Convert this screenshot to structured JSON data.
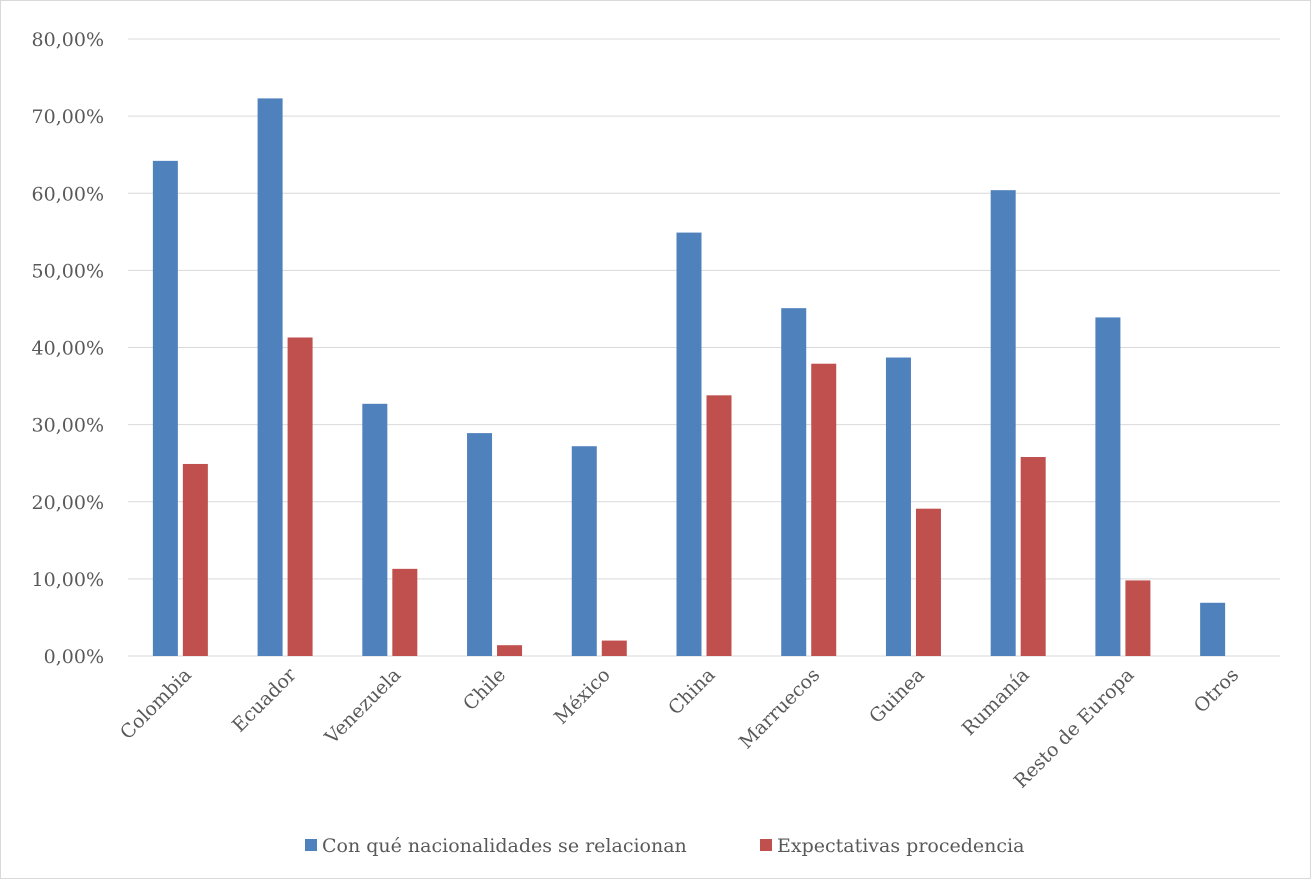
{
  "chart_data": {
    "type": "bar",
    "title": "",
    "xlabel": "",
    "ylabel": "",
    "ylim": [
      0,
      80
    ],
    "y_ticks": [
      0,
      10,
      20,
      30,
      40,
      50,
      60,
      70,
      80
    ],
    "y_tick_labels": [
      "0,00%",
      "10,00%",
      "20,00%",
      "30,00%",
      "40,00%",
      "50,00%",
      "60,00%",
      "70,00%",
      "80,00%"
    ],
    "grid": true,
    "legend_position": "bottom",
    "categories": [
      "Colombia",
      "Ecuador",
      "Venezuela",
      "Chile",
      "México",
      "China",
      "Marruecos",
      "Guinea",
      "Rumanía",
      "Resto de Europa",
      "Otros"
    ],
    "series": [
      {
        "name": "Con qué nacionalidades se relacionan",
        "color": "#4f81bd",
        "values": [
          64.2,
          72.3,
          32.7,
          28.9,
          27.2,
          54.9,
          45.1,
          38.7,
          60.4,
          43.9,
          6.9
        ]
      },
      {
        "name": "Expectativas procedencia",
        "color": "#c0504d",
        "values": [
          24.9,
          41.3,
          11.3,
          1.4,
          2.0,
          33.8,
          37.9,
          19.1,
          25.8,
          9.8,
          0
        ]
      }
    ]
  }
}
